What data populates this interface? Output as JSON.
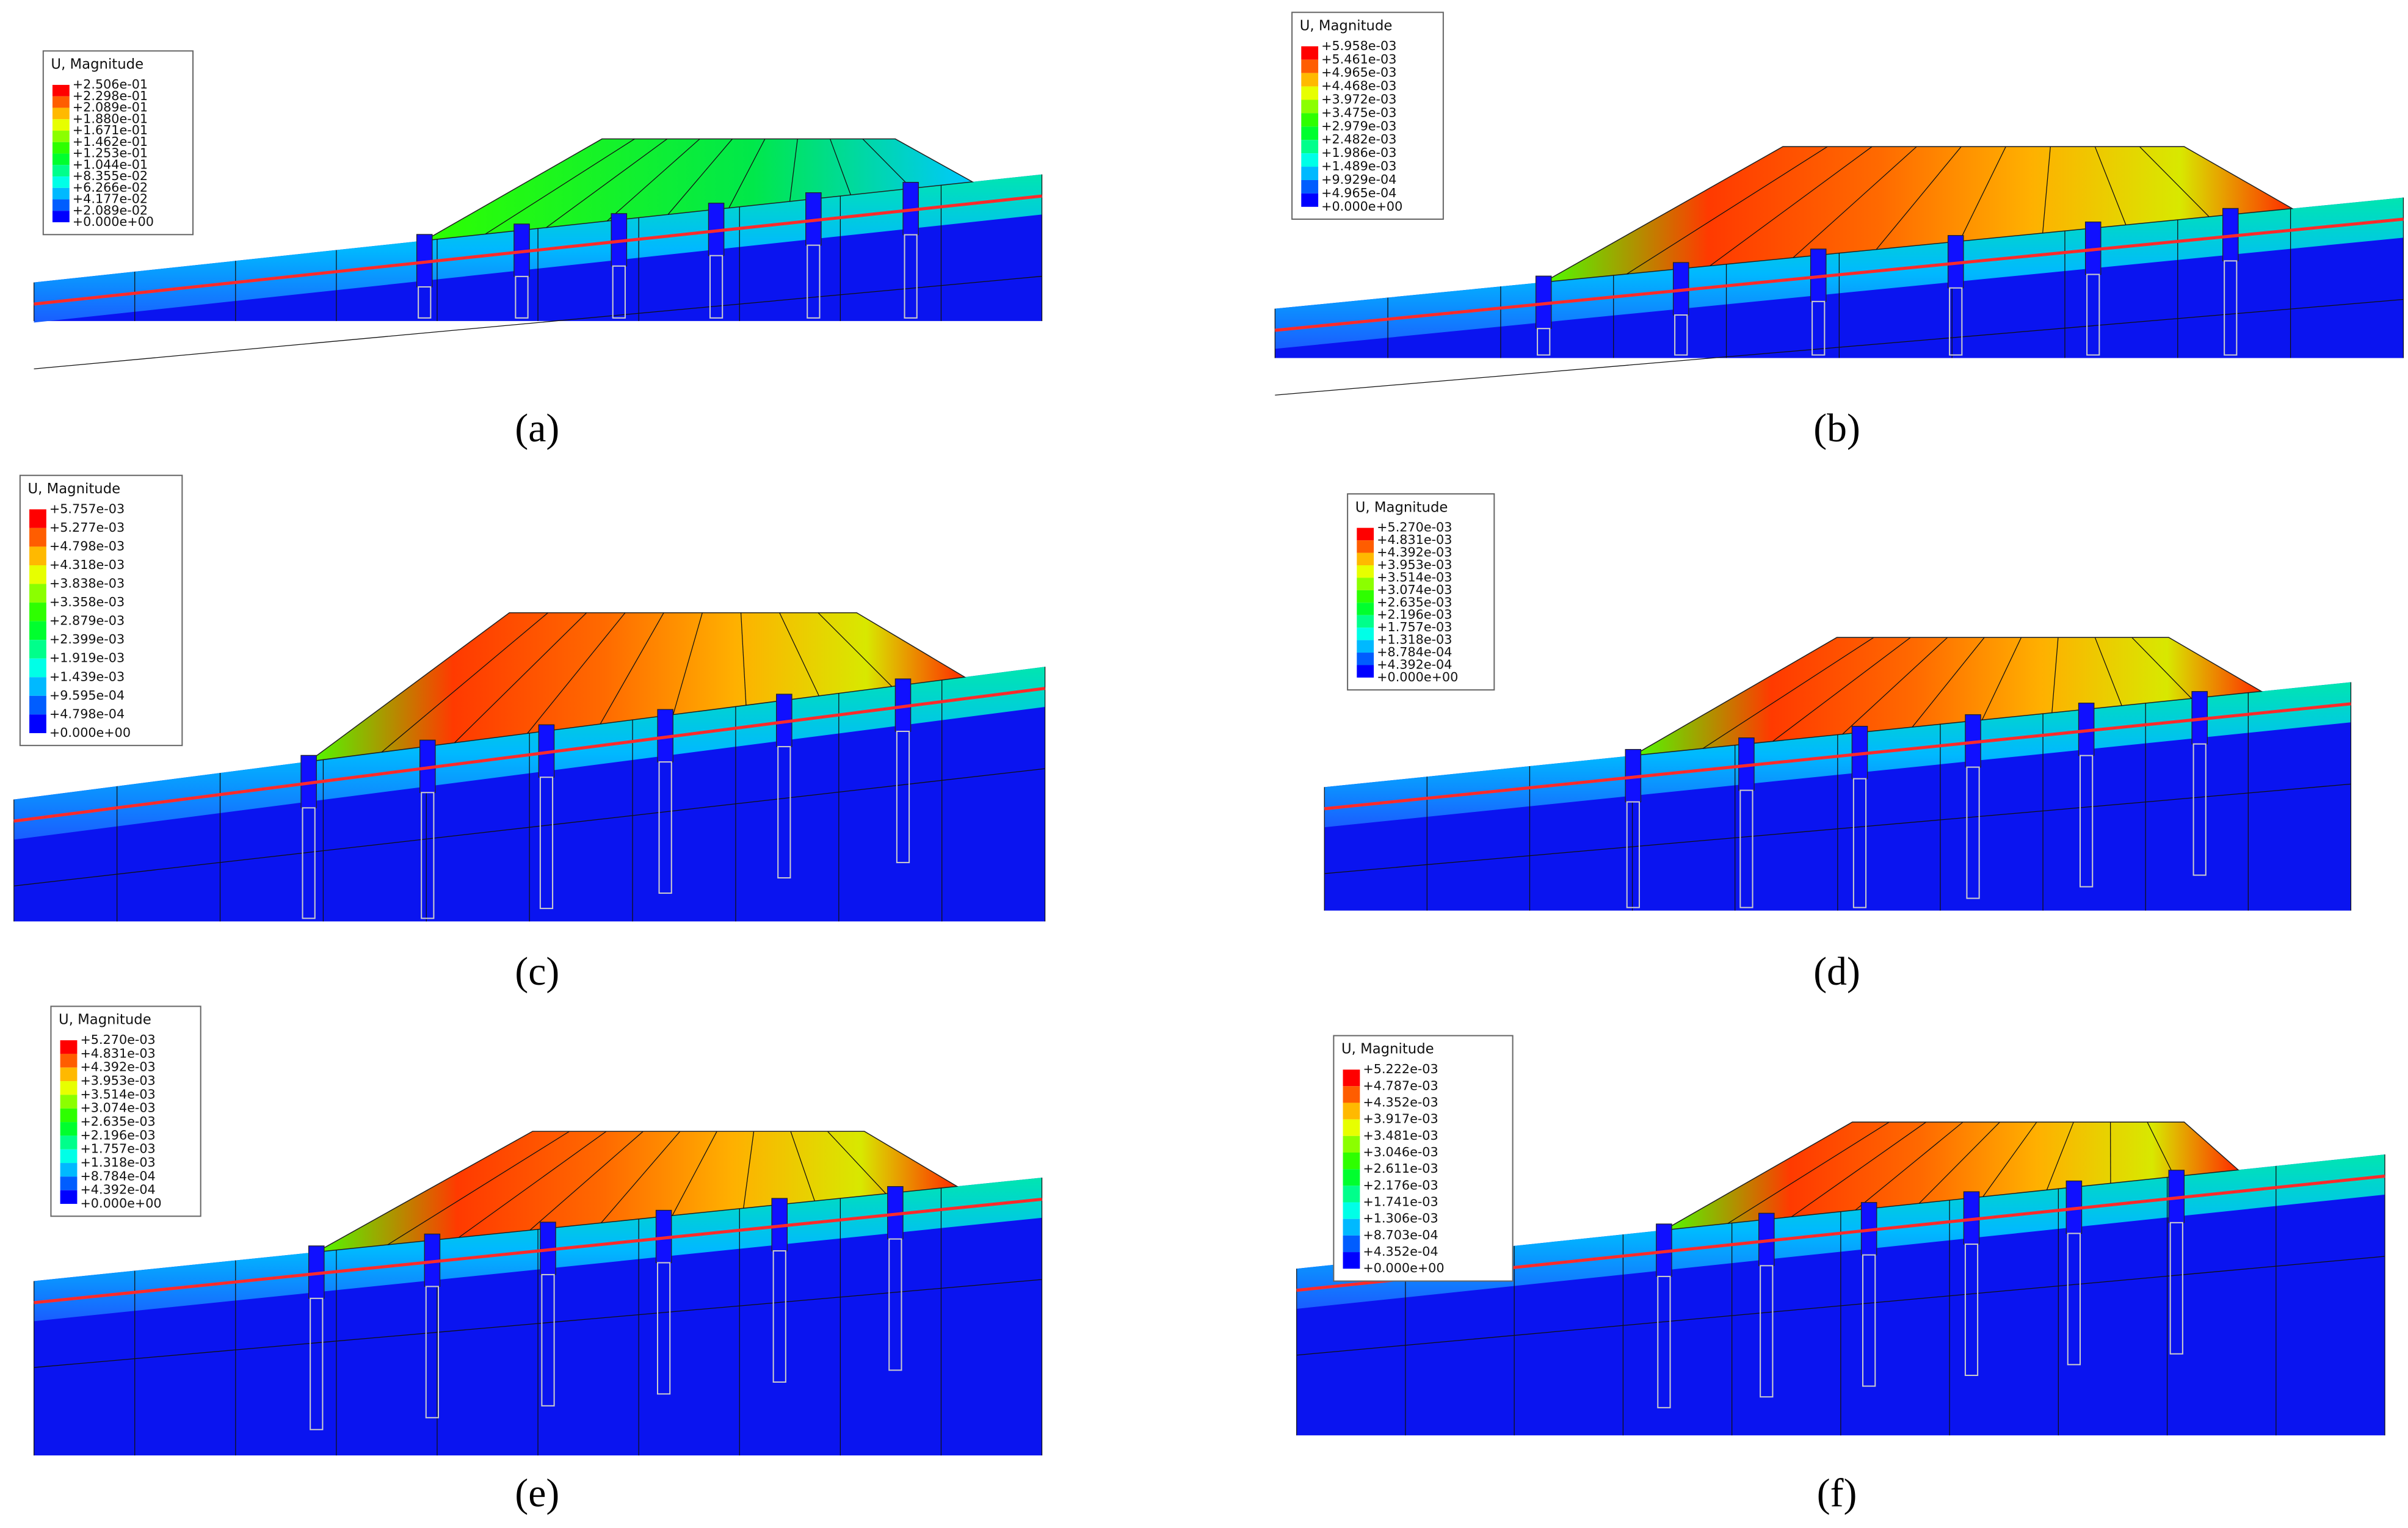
{
  "panels": [
    {
      "label": "(a)",
      "legend": {
        "title": "U, Magnitude",
        "values": [
          "+2.506e-01",
          "+2.298e-01",
          "+2.089e-01",
          "+1.880e-01",
          "+1.671e-01",
          "+1.462e-01",
          "+1.253e-01",
          "+1.044e-01",
          "+8.355e-02",
          "+6.266e-02",
          "+4.177e-02",
          "+2.089e-02",
          "+0.000e+00"
        ]
      }
    },
    {
      "label": "(b)",
      "legend": {
        "title": "U, Magnitude",
        "values": [
          "+5.958e-03",
          "+5.461e-03",
          "+4.965e-03",
          "+4.468e-03",
          "+3.972e-03",
          "+3.475e-03",
          "+2.979e-03",
          "+2.482e-03",
          "+1.986e-03",
          "+1.489e-03",
          "+9.929e-04",
          "+4.965e-04",
          "+0.000e+00"
        ]
      }
    },
    {
      "label": "(c)",
      "legend": {
        "title": "U, Magnitude",
        "values": [
          "+5.757e-03",
          "+5.277e-03",
          "+4.798e-03",
          "+4.318e-03",
          "+3.838e-03",
          "+3.358e-03",
          "+2.879e-03",
          "+2.399e-03",
          "+1.919e-03",
          "+1.439e-03",
          "+9.595e-04",
          "+4.798e-04",
          "+0.000e+00"
        ]
      }
    },
    {
      "label": "(d)",
      "legend": {
        "title": "U, Magnitude",
        "values": [
          "+5.270e-03",
          "+4.831e-03",
          "+4.392e-03",
          "+3.953e-03",
          "+3.514e-03",
          "+3.074e-03",
          "+2.635e-03",
          "+2.196e-03",
          "+1.757e-03",
          "+1.318e-03",
          "+8.784e-04",
          "+4.392e-04",
          "+0.000e+00"
        ]
      }
    },
    {
      "label": "(e)",
      "legend": {
        "title": "U, Magnitude",
        "values": [
          "+5.270e-03",
          "+4.831e-03",
          "+4.392e-03",
          "+3.953e-03",
          "+3.514e-03",
          "+3.074e-03",
          "+2.635e-03",
          "+2.196e-03",
          "+1.757e-03",
          "+1.318e-03",
          "+8.784e-04",
          "+4.392e-04",
          "+0.000e+00"
        ]
      }
    },
    {
      "label": "(f)",
      "legend": {
        "title": "U, Magnitude",
        "values": [
          "+5.222e-03",
          "+4.787e-03",
          "+4.352e-03",
          "+3.917e-03",
          "+3.481e-03",
          "+3.046e-03",
          "+2.611e-03",
          "+2.176e-03",
          "+1.741e-03",
          "+1.306e-03",
          "+8.703e-04",
          "+4.352e-04",
          "+0.000e+00"
        ]
      }
    }
  ]
}
